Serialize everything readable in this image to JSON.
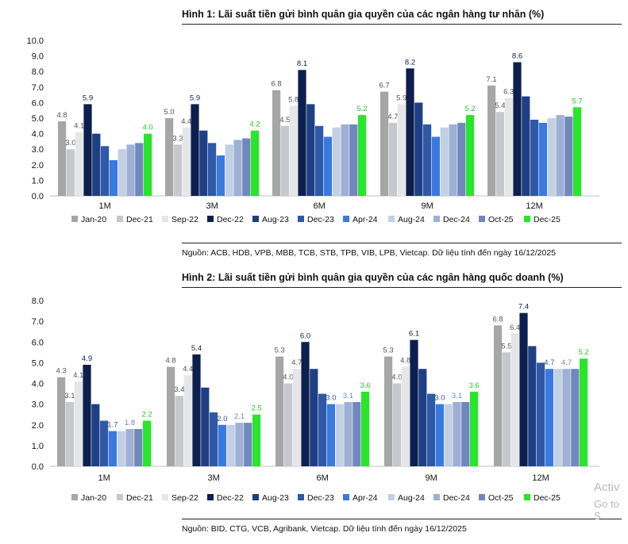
{
  "colors": [
    "#a6a6a6",
    "#c6c8cd",
    "#e5e6e8",
    "#0d1f4e",
    "#1f3f85",
    "#2f58a6",
    "#3a7ae0",
    "#c3cfe3",
    "#9eb0d5",
    "#7088bd",
    "#29e52b"
  ],
  "legend": [
    "Jan-20",
    "Dec-21",
    "Sep-22",
    "Dec-22",
    "Aug-23",
    "Dec-23",
    "Apr-24",
    "Aug-24",
    "Dec-24",
    "Oct-25",
    "Dec-25"
  ],
  "watermark": [
    "Activ",
    "Go to S"
  ],
  "chart_data": [
    {
      "type": "bar",
      "title": "Hình 1: Lãi suất tiền gửi bình quân gia quyền của các ngân hàng tư nhân (%)",
      "source": "Nguồn: ACB, HDB, VPB, MBB, TCB, STB, TPB, VIB, LPB, Vietcap. Dữ liệu tính đến ngày 16/12/2025",
      "categories": [
        "1M",
        "3M",
        "6M",
        "9M",
        "12M"
      ],
      "ylim": [
        0,
        10
      ],
      "yticks": [
        "0.0",
        "1.0",
        "2.0",
        "3.0",
        "4.0",
        "5.0",
        "6.0",
        "7.0",
        "8.0",
        "9.0",
        "10.0"
      ],
      "series": [
        {
          "name": "Jan-20",
          "values": [
            4.8,
            5.0,
            6.8,
            6.7,
            7.1
          ]
        },
        {
          "name": "Dec-21",
          "values": [
            3.0,
            3.3,
            4.5,
            4.7,
            5.4
          ]
        },
        {
          "name": "Sep-22",
          "values": [
            4.1,
            4.4,
            5.8,
            5.9,
            6.3
          ]
        },
        {
          "name": "Dec-22",
          "values": [
            5.9,
            5.9,
            8.1,
            8.2,
            8.6
          ]
        },
        {
          "name": "Aug-23",
          "values": [
            4.0,
            4.2,
            5.9,
            6.0,
            6.4
          ]
        },
        {
          "name": "Dec-23",
          "values": [
            3.2,
            3.4,
            4.5,
            4.6,
            4.9
          ]
        },
        {
          "name": "Apr-24",
          "values": [
            2.3,
            2.6,
            3.8,
            3.8,
            4.7
          ]
        },
        {
          "name": "Aug-24",
          "values": [
            3.0,
            3.3,
            4.4,
            4.4,
            5.0
          ]
        },
        {
          "name": "Dec-24",
          "values": [
            3.3,
            3.6,
            4.6,
            4.6,
            5.2
          ]
        },
        {
          "name": "Oct-25",
          "values": [
            3.4,
            3.7,
            4.6,
            4.7,
            5.1
          ]
        },
        {
          "name": "Dec-25",
          "values": [
            4.0,
            4.2,
            5.2,
            5.2,
            5.7
          ]
        }
      ],
      "labeled_series": [
        "Jan-20",
        "Dec-21",
        "Sep-22",
        "Dec-22",
        "Dec-25"
      ],
      "legend_position": "bottom"
    },
    {
      "type": "bar",
      "title": "Hình 2: Lãi suất tiền gửi bình quân gia quyền của các ngân hàng quốc doanh (%)",
      "source": "Nguồn: BID, CTG, VCB, Agribank, Vietcap. Dữ liệu tính đến ngày 16/12/2025",
      "categories": [
        "1M",
        "3M",
        "6M",
        "9M",
        "12M"
      ],
      "ylim": [
        0,
        8
      ],
      "yticks": [
        "0.0",
        "1.0",
        "2.0",
        "3.0",
        "4.0",
        "5.0",
        "6.0",
        "7.0",
        "8.0"
      ],
      "series": [
        {
          "name": "Jan-20",
          "values": [
            4.3,
            4.8,
            5.3,
            5.3,
            6.8
          ]
        },
        {
          "name": "Dec-21",
          "values": [
            3.1,
            3.4,
            4.0,
            4.0,
            5.5
          ]
        },
        {
          "name": "Sep-22",
          "values": [
            4.1,
            4.4,
            4.7,
            4.8,
            6.4
          ]
        },
        {
          "name": "Dec-22",
          "values": [
            4.9,
            5.4,
            6.0,
            6.1,
            7.4
          ]
        },
        {
          "name": "Aug-23",
          "values": [
            3.0,
            3.8,
            4.7,
            4.7,
            5.8
          ]
        },
        {
          "name": "Dec-23",
          "values": [
            2.2,
            2.6,
            3.5,
            3.5,
            5.0
          ]
        },
        {
          "name": "Apr-24",
          "values": [
            1.7,
            2.0,
            3.0,
            3.0,
            4.7
          ]
        },
        {
          "name": "Aug-24",
          "values": [
            1.7,
            2.0,
            3.0,
            3.0,
            4.7
          ]
        },
        {
          "name": "Dec-24",
          "values": [
            1.8,
            2.1,
            3.1,
            3.1,
            4.7
          ]
        },
        {
          "name": "Oct-25",
          "values": [
            1.8,
            2.1,
            3.1,
            3.1,
            4.7
          ]
        },
        {
          "name": "Dec-25",
          "values": [
            2.2,
            2.5,
            3.6,
            3.6,
            5.2
          ]
        }
      ],
      "labeled_series": [
        "Jan-20",
        "Dec-21",
        "Sep-22",
        "Dec-22",
        "Apr-24",
        "Dec-24",
        "Dec-25"
      ],
      "legend_position": "bottom"
    }
  ]
}
